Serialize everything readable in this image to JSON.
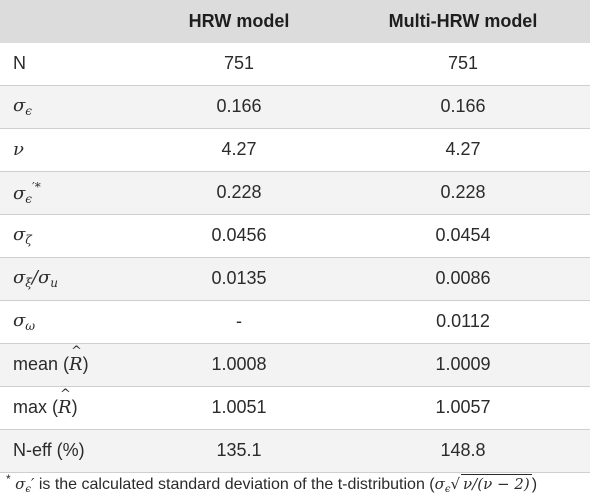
{
  "table": {
    "headers": [
      "",
      "HRW model",
      "Multi-HRW model"
    ],
    "rows": [
      {
        "label": "N",
        "math": false,
        "hrw": "751",
        "multi": "751"
      },
      {
        "label": "σ",
        "sub": "ϵ",
        "sup": "",
        "math": true,
        "hrw": "0.166",
        "multi": "0.166"
      },
      {
        "label": "ν",
        "sub": "",
        "sup": "",
        "math": true,
        "hrw": "4.27",
        "multi": "4.27"
      },
      {
        "label": "σ",
        "sub": "ϵ",
        "sup": "′*",
        "math": true,
        "hrw": "0.228",
        "multi": "0.228"
      },
      {
        "label": "σ",
        "sub": "ζ",
        "sup": "",
        "math": true,
        "hrw": "0.0456",
        "multi": "0.0454"
      },
      {
        "label": "σ",
        "sub": "ξ",
        "suffix": "/σ",
        "suffix_sub": "u",
        "math": true,
        "hrw": "0.0135",
        "multi": "0.0086"
      },
      {
        "label": "σ",
        "sub": "ω",
        "sup": "",
        "math": true,
        "hrw": "-",
        "multi": "0.0112"
      },
      {
        "label": "mean (",
        "var": "R",
        "close": ")",
        "hatted": true,
        "hrw": "1.0008",
        "multi": "1.0009"
      },
      {
        "label": "max (",
        "var": "R",
        "close": ")",
        "hatted": true,
        "hrw": "1.0051",
        "multi": "1.0057"
      },
      {
        "label": "N-eff (%)",
        "math": false,
        "hrw": "135.1",
        "multi": "148.8"
      }
    ]
  },
  "footnote": {
    "star": "*",
    "symbol": "σ",
    "symbol_sub": "ϵ",
    "prime": "′",
    "text": " is the calculated standard deviation of the t-distribution (",
    "formula_sigma": "σ",
    "formula_sub": "ϵ",
    "formula_sqrt": "ν/(ν − 2)",
    "close": ")"
  }
}
